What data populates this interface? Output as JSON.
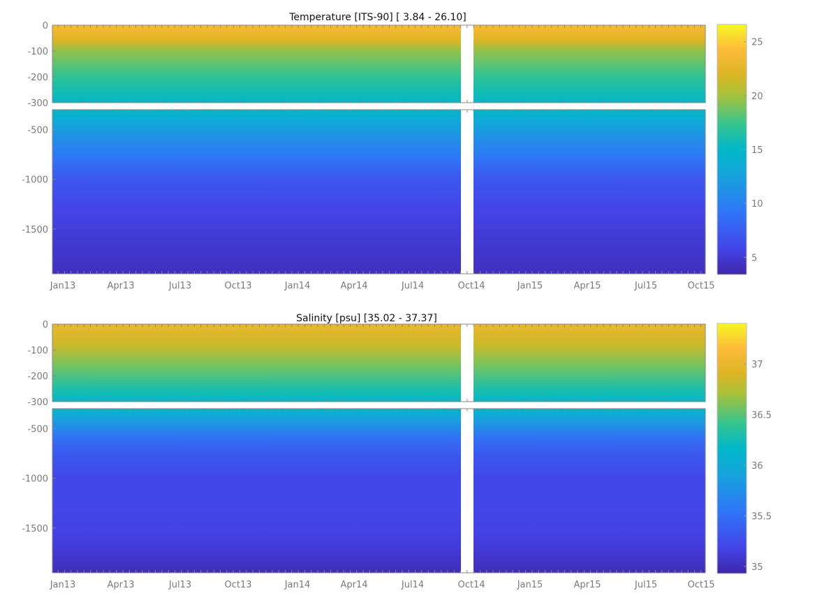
{
  "chart_data": [
    {
      "type": "heatmap",
      "title": "Temperature [ITS-90]   [ 3.84 - 26.10]",
      "x_tick_labels": [
        "Jan13",
        "Apr13",
        "Jul13",
        "Oct13",
        "Jan14",
        "Apr14",
        "Jul14",
        "Oct14",
        "Jan15",
        "Apr15",
        "Jul15",
        "Oct15"
      ],
      "y_ticks_upper": [
        0,
        -100,
        -200,
        -300
      ],
      "y_ticks_lower": [
        -500,
        -1000,
        -1500
      ],
      "ylim_upper": [
        -300,
        0
      ],
      "ylim_lower": [
        -1950,
        -300
      ],
      "data_gap": [
        "2014-09-20",
        "2014-10-10"
      ],
      "colorbar": {
        "range": [
          3.4,
          26.6
        ],
        "ticks": [
          5,
          10,
          15,
          20,
          25
        ]
      },
      "colormap": "parula",
      "mean_profile": [
        [
          0,
          24.0
        ],
        [
          -60,
          22.0
        ],
        [
          -100,
          19.5
        ],
        [
          -200,
          17.0
        ],
        [
          -300,
          15.0
        ],
        [
          -400,
          13.5
        ],
        [
          -600,
          11.0
        ],
        [
          -800,
          9.0
        ],
        [
          -1000,
          7.0
        ],
        [
          -1300,
          5.8
        ],
        [
          -1600,
          5.0
        ],
        [
          -1950,
          4.2
        ]
      ]
    },
    {
      "type": "heatmap",
      "title": "Salinity [psu]   [35.02 - 37.37]",
      "x_tick_labels": [
        "Jan13",
        "Apr13",
        "Jul13",
        "Oct13",
        "Jan14",
        "Apr14",
        "Jul14",
        "Oct14",
        "Jan15",
        "Apr15",
        "Jul15",
        "Oct15"
      ],
      "y_ticks_upper": [
        0,
        -100,
        -200,
        -300
      ],
      "y_ticks_lower": [
        -500,
        -1000,
        -1500
      ],
      "ylim_upper": [
        -300,
        0
      ],
      "ylim_lower": [
        -1950,
        -300
      ],
      "data_gap": [
        "2014-09-20",
        "2014-10-10"
      ],
      "colorbar": {
        "range": [
          34.93,
          37.4
        ],
        "ticks": [
          35,
          35.5,
          36,
          36.5,
          37
        ]
      },
      "colormap": "parula",
      "mean_profile": [
        [
          0,
          37.0
        ],
        [
          -80,
          36.85
        ],
        [
          -150,
          36.6
        ],
        [
          -250,
          36.3
        ],
        [
          -300,
          36.15
        ],
        [
          -400,
          35.9
        ],
        [
          -600,
          35.5
        ],
        [
          -800,
          35.3
        ],
        [
          -1000,
          35.2
        ],
        [
          -1300,
          35.2
        ],
        [
          -1600,
          35.15
        ],
        [
          -1950,
          35.0
        ]
      ]
    }
  ]
}
